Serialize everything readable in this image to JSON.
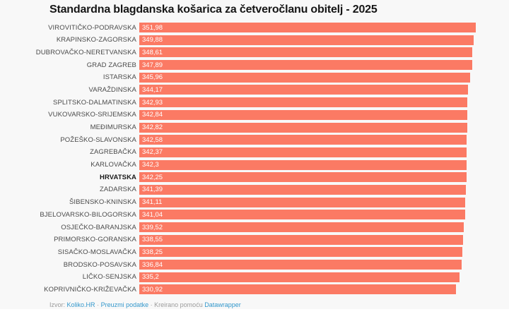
{
  "title": "Standardna blagdanska košarica za četveročlanu obitelj - 2025",
  "footer": {
    "source_label": "Izvor:",
    "source_link": "Koliko.HR",
    "separator": "·",
    "download_link": "Preuzmi podatke",
    "created_with": "Kreirano pomoću",
    "tool_link": "Datawrapper"
  },
  "colors": {
    "bar": "#fb7a64",
    "background": "#f8f8f8",
    "category_label": "#4a4a4a",
    "value_text": "#ffffff",
    "title_text": "#161616",
    "footer_text": "#9b9b9b",
    "link": "#3498cc"
  },
  "chart_data": {
    "type": "bar",
    "orientation": "horizontal",
    "title": "Standardna blagdanska košarica za četveročlanu obitelj - 2025",
    "xlabel": "",
    "ylabel": "",
    "xlim": [
      0,
      351.98
    ],
    "grid": false,
    "legend": false,
    "value_label_position": "inside-start",
    "highlight_category": "HRVATSKA",
    "categories": [
      "VIROVITIČKO-PODRAVSKA",
      "KRAPINSKO-ZAGORSKA",
      "DUBROVAČKO-NERETVANSKA",
      "GRAD ZAGREB",
      "ISTARSKA",
      "VARAŽDINSKA",
      "SPLITSKO-DALMATINSKA",
      "VUKOVARSKO-SRIJEMSKA",
      "MEĐIMURSKA",
      "POŽEŠKO-SLAVONSKA",
      "ZAGREBAČKA",
      "KARLOVAČKA",
      "HRVATSKA",
      "ZADARSKA",
      "ŠIBENSKO-KNINSKA",
      "BJELOVARSKO-BILOGORSKA",
      "OSJEČKO-BARANJSKA",
      "PRIMORSKO-GORANSKA",
      "SISAČKO-MOSLAVAČKA",
      "BRODSKO-POSAVSKA",
      "LIČKO-SENJSKA",
      "KOPRIVNIČKO-KRIŽEVAČKA"
    ],
    "values": [
      351.98,
      349.88,
      348.61,
      347.89,
      345.96,
      344.17,
      342.93,
      342.84,
      342.82,
      342.58,
      342.37,
      342.3,
      342.25,
      341.39,
      341.11,
      341.04,
      339.52,
      338.55,
      338.25,
      336.84,
      335.2,
      330.92
    ],
    "value_labels": [
      "351,98",
      "349,88",
      "348,61",
      "347,89",
      "345,96",
      "344,17",
      "342,93",
      "342,84",
      "342,82",
      "342,58",
      "342,37",
      "342,3",
      "342,25",
      "341,39",
      "341,11",
      "341,04",
      "339,52",
      "338,55",
      "338,25",
      "336,84",
      "335,2",
      "330,92"
    ]
  }
}
